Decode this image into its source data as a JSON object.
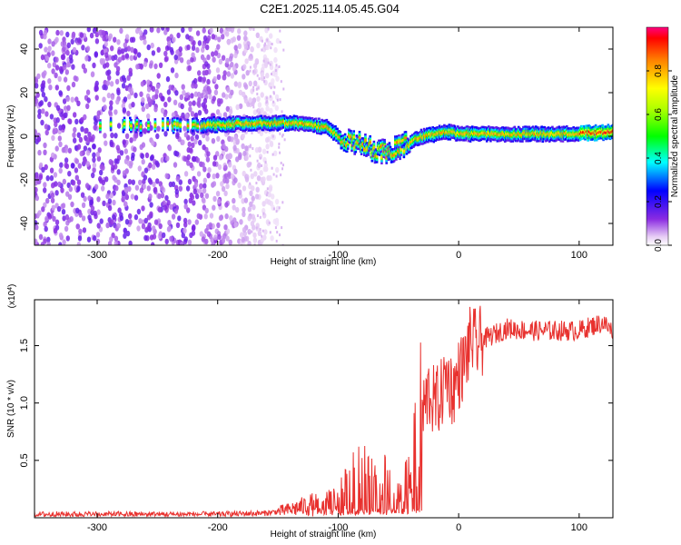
{
  "title": "C2E1.2025.114.05.45.G04",
  "chart_data": [
    {
      "type": "heatmap",
      "xlabel": "Height of straight line (km)",
      "ylabel": "Frequency (Hz)",
      "xlim": [
        -352,
        128
      ],
      "ylim": [
        -50,
        50
      ],
      "xticks": [
        -300,
        -200,
        -100,
        0,
        100
      ],
      "yticks": [
        -40,
        -20,
        0,
        20,
        40
      ],
      "colorbar": {
        "label": "Normalized spectral amplitude",
        "range": [
          0,
          1
        ],
        "ticks": [
          0.0,
          0.2,
          0.4,
          0.6,
          0.8
        ],
        "tick_labels": [
          "0.0",
          "0.2",
          "0.4",
          "0.6",
          "0.8"
        ]
      },
      "ridge": {
        "x": [
          -215,
          -190,
          -170,
          -150,
          -130,
          -110,
          -95,
          -80,
          -70,
          -60,
          -50,
          -40,
          -30,
          -20,
          -10,
          0,
          20,
          50,
          80,
          110,
          128
        ],
        "y": [
          5,
          5.5,
          6,
          6,
          6,
          4,
          -2,
          -4,
          -7,
          -7,
          -5,
          -2,
          0,
          1,
          2,
          1,
          1,
          1,
          1,
          1.5,
          2
        ]
      },
      "noise_x_range": [
        -352,
        -150
      ]
    },
    {
      "type": "line",
      "xlabel": "Height of straight line (km)",
      "ylabel": "SNR (10 * v/v)",
      "y_multiplier": "(x10",
      "y_multiplier_exp": "4",
      "y_multiplier_close": ")",
      "xlim": [
        -352,
        128
      ],
      "ylim": [
        0,
        19000
      ],
      "xticks": [
        -300,
        -200,
        -100,
        0,
        100
      ],
      "yticks": [
        5000,
        10000,
        15000
      ],
      "ytick_labels": [
        "0.5",
        "1.0",
        "1.5"
      ],
      "color": "#e8312e",
      "series": [
        {
          "x": [
            -352,
            -300,
            -250,
            -200,
            -160,
            -140,
            -120,
            -100,
            -90,
            -80,
            -70,
            -60,
            -50,
            -45,
            -40,
            -35,
            -30,
            -25,
            -20,
            -15,
            -10,
            -5,
            0,
            5,
            10,
            15,
            20,
            30,
            40,
            60,
            80,
            100,
            110,
            120,
            128
          ],
          "y": [
            300,
            300,
            300,
            300,
            400,
            700,
            1200,
            1500,
            2800,
            3800,
            2500,
            3500,
            1500,
            2500,
            4000,
            6500,
            9000,
            11000,
            10000,
            10500,
            12500,
            11000,
            12500,
            13500,
            15500,
            15000,
            15500,
            16000,
            16500,
            16300,
            16300,
            16300,
            16700,
            17000,
            16200
          ]
        }
      ]
    }
  ]
}
